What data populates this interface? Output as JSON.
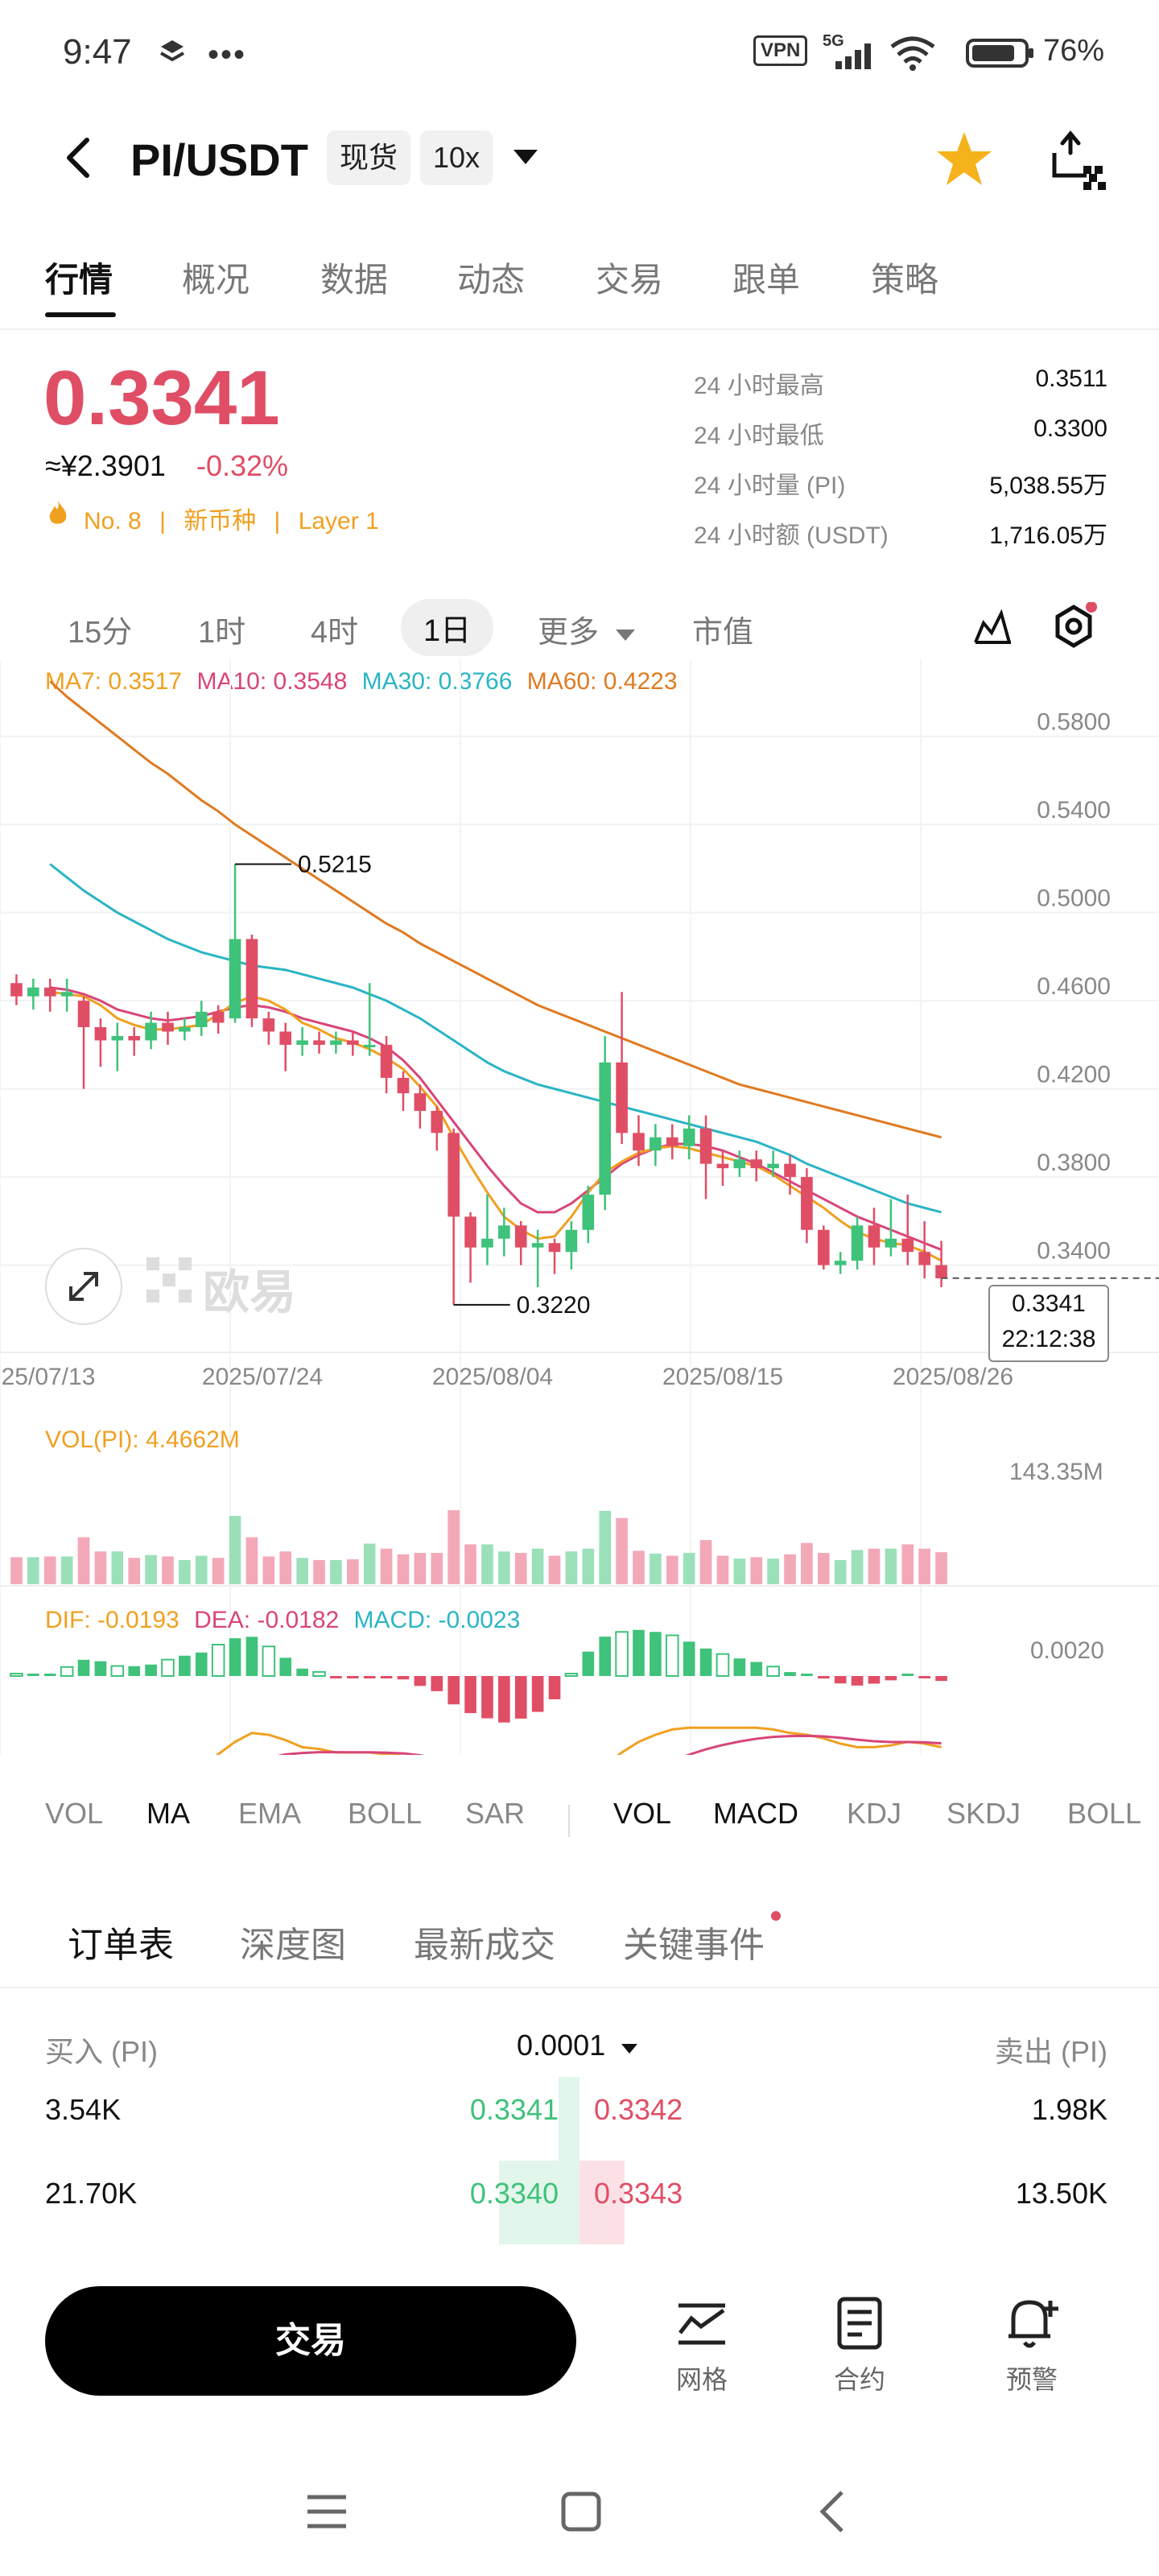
{
  "status_bar": {
    "time": "9:47",
    "vpn": "VPN",
    "network": "5G",
    "battery": "76%"
  },
  "header": {
    "pair": "PI/USDT",
    "market_type": "现货",
    "leverage": "10x"
  },
  "tabs": [
    "行情",
    "概况",
    "数据",
    "动态",
    "交易",
    "跟单",
    "策略"
  ],
  "ticker": {
    "price": "0.3341",
    "fiat": "≈¥2.3901",
    "change": "-0.32%",
    "rank": "No. 8",
    "tag1": "新币种",
    "tag2": "Layer 1",
    "stats": [
      {
        "label": "24 小时最高",
        "value": "0.3511"
      },
      {
        "label": "24 小时最低",
        "value": "0.3300"
      },
      {
        "label": "24 小时量 (PI)",
        "value": "5,038.55万"
      },
      {
        "label": "24 小时额 (USDT)",
        "value": "1,716.05万"
      }
    ]
  },
  "timeframes": [
    "15分",
    "1时",
    "4时",
    "1日",
    "更多",
    "市值"
  ],
  "ma_legend": [
    {
      "label": "MA7: 0.3517",
      "color": "#f0a020"
    },
    {
      "label": "MA10: 0.3548",
      "color": "#d8457a"
    },
    {
      "label": "MA30: 0.3766",
      "color": "#2bb5c4"
    },
    {
      "label": "MA60: 0.4223",
      "color": "#e07a20"
    }
  ],
  "chart_data": {
    "type": "candlestick",
    "y_ticks": [
      "0.5800",
      "0.5400",
      "0.5000",
      "0.4600",
      "0.4200",
      "0.3800",
      "0.3400"
    ],
    "ylim": [
      0.315,
      0.6
    ],
    "x_ticks": [
      "25/07/13",
      "2025/07/24",
      "2025/08/04",
      "2025/08/15",
      "2025/08/26"
    ],
    "high_marker": "0.5215",
    "low_marker": "0.3220",
    "current_price": "0.3341",
    "countdown": "22:12:38",
    "watermark": "欧易",
    "candles": [
      [
        0.468,
        0.462,
        0.472,
        0.458
      ],
      [
        0.462,
        0.466,
        0.47,
        0.456
      ],
      [
        0.466,
        0.462,
        0.47,
        0.455
      ],
      [
        0.462,
        0.464,
        0.47,
        0.455
      ],
      [
        0.46,
        0.448,
        0.462,
        0.42
      ],
      [
        0.448,
        0.442,
        0.452,
        0.43
      ],
      [
        0.442,
        0.444,
        0.45,
        0.428
      ],
      [
        0.444,
        0.442,
        0.448,
        0.435
      ],
      [
        0.442,
        0.45,
        0.455,
        0.438
      ],
      [
        0.45,
        0.446,
        0.455,
        0.44
      ],
      [
        0.446,
        0.448,
        0.452,
        0.442
      ],
      [
        0.448,
        0.455,
        0.46,
        0.444
      ],
      [
        0.455,
        0.45,
        0.458,
        0.445
      ],
      [
        0.452,
        0.488,
        0.522,
        0.45
      ],
      [
        0.488,
        0.452,
        0.49,
        0.448
      ],
      [
        0.452,
        0.446,
        0.455,
        0.44
      ],
      [
        0.446,
        0.44,
        0.45,
        0.428
      ],
      [
        0.44,
        0.442,
        0.448,
        0.435
      ],
      [
        0.442,
        0.44,
        0.446,
        0.436
      ],
      [
        0.44,
        0.442,
        0.446,
        0.436
      ],
      [
        0.442,
        0.44,
        0.446,
        0.435
      ],
      [
        0.44,
        0.44,
        0.468,
        0.435
      ],
      [
        0.44,
        0.425,
        0.444,
        0.418
      ],
      [
        0.425,
        0.418,
        0.428,
        0.41
      ],
      [
        0.418,
        0.41,
        0.422,
        0.402
      ],
      [
        0.41,
        0.4,
        0.412,
        0.392
      ],
      [
        0.4,
        0.362,
        0.402,
        0.322
      ],
      [
        0.362,
        0.348,
        0.364,
        0.332
      ],
      [
        0.348,
        0.352,
        0.372,
        0.34
      ],
      [
        0.352,
        0.358,
        0.366,
        0.344
      ],
      [
        0.358,
        0.348,
        0.36,
        0.34
      ],
      [
        0.348,
        0.35,
        0.356,
        0.33
      ],
      [
        0.35,
        0.346,
        0.352,
        0.336
      ],
      [
        0.346,
        0.356,
        0.36,
        0.338
      ],
      [
        0.356,
        0.372,
        0.376,
        0.35
      ],
      [
        0.372,
        0.432,
        0.444,
        0.365
      ],
      [
        0.432,
        0.4,
        0.464,
        0.395
      ],
      [
        0.4,
        0.392,
        0.408,
        0.385
      ],
      [
        0.392,
        0.398,
        0.404,
        0.385
      ],
      [
        0.398,
        0.394,
        0.404,
        0.388
      ],
      [
        0.394,
        0.402,
        0.408,
        0.388
      ],
      [
        0.402,
        0.386,
        0.408,
        0.37
      ],
      [
        0.386,
        0.384,
        0.392,
        0.376
      ],
      [
        0.384,
        0.388,
        0.392,
        0.38
      ],
      [
        0.388,
        0.384,
        0.392,
        0.378
      ],
      [
        0.384,
        0.386,
        0.392,
        0.38
      ],
      [
        0.386,
        0.38,
        0.39,
        0.372
      ],
      [
        0.38,
        0.356,
        0.384,
        0.35
      ],
      [
        0.356,
        0.34,
        0.358,
        0.338
      ],
      [
        0.34,
        0.342,
        0.346,
        0.336
      ],
      [
        0.342,
        0.358,
        0.362,
        0.338
      ],
      [
        0.358,
        0.348,
        0.366,
        0.34
      ],
      [
        0.348,
        0.352,
        0.37,
        0.344
      ],
      [
        0.352,
        0.346,
        0.372,
        0.34
      ],
      [
        0.346,
        0.34,
        0.36,
        0.334
      ],
      [
        0.34,
        0.334,
        0.351,
        0.33
      ]
    ],
    "ma7": [
      0.464,
      0.463,
      0.462,
      0.458,
      0.452,
      0.449,
      0.447,
      0.447,
      0.448,
      0.449,
      0.454,
      0.459,
      0.462,
      0.46,
      0.456,
      0.45,
      0.447,
      0.443,
      0.441,
      0.438,
      0.434,
      0.429,
      0.421,
      0.412,
      0.398,
      0.385,
      0.373,
      0.362,
      0.356,
      0.352,
      0.353,
      0.362,
      0.373,
      0.382,
      0.387,
      0.391,
      0.393,
      0.394,
      0.393,
      0.391,
      0.389,
      0.387,
      0.385,
      0.381,
      0.376,
      0.371,
      0.366,
      0.36,
      0.355,
      0.352,
      0.35,
      0.349,
      0.346,
      0.342
    ],
    "ma10": [
      0.466,
      0.465,
      0.463,
      0.46,
      0.456,
      0.454,
      0.452,
      0.451,
      0.452,
      0.453,
      0.455,
      0.457,
      0.458,
      0.457,
      0.455,
      0.452,
      0.45,
      0.448,
      0.446,
      0.443,
      0.439,
      0.433,
      0.425,
      0.415,
      0.405,
      0.395,
      0.385,
      0.376,
      0.368,
      0.364,
      0.364,
      0.368,
      0.374,
      0.38,
      0.386,
      0.39,
      0.393,
      0.395,
      0.395,
      0.394,
      0.392,
      0.389,
      0.386,
      0.382,
      0.378,
      0.374,
      0.37,
      0.366,
      0.362,
      0.359,
      0.356,
      0.353,
      0.35,
      0.347
    ],
    "ma30": [
      0.522,
      0.516,
      0.51,
      0.505,
      0.5,
      0.496,
      0.492,
      0.488,
      0.485,
      0.482,
      0.48,
      0.478,
      0.476,
      0.475,
      0.474,
      0.472,
      0.47,
      0.468,
      0.466,
      0.463,
      0.46,
      0.456,
      0.452,
      0.447,
      0.442,
      0.437,
      0.432,
      0.428,
      0.425,
      0.422,
      0.42,
      0.418,
      0.416,
      0.414,
      0.412,
      0.41,
      0.408,
      0.406,
      0.404,
      0.402,
      0.4,
      0.398,
      0.396,
      0.393,
      0.39,
      0.386,
      0.383,
      0.38,
      0.377,
      0.374,
      0.371,
      0.368,
      0.366,
      0.364
    ],
    "ma60": [
      0.605,
      0.598,
      0.592,
      0.586,
      0.58,
      0.574,
      0.568,
      0.563,
      0.557,
      0.551,
      0.546,
      0.54,
      0.535,
      0.53,
      0.525,
      0.52,
      0.515,
      0.51,
      0.505,
      0.5,
      0.495,
      0.491,
      0.486,
      0.482,
      0.478,
      0.474,
      0.47,
      0.466,
      0.462,
      0.458,
      0.455,
      0.452,
      0.449,
      0.446,
      0.443,
      0.44,
      0.437,
      0.434,
      0.431,
      0.428,
      0.425,
      0.422,
      0.42,
      0.418,
      0.416,
      0.414,
      0.412,
      0.41,
      0.408,
      0.406,
      0.404,
      0.402,
      0.4,
      0.398
    ]
  },
  "volume": {
    "label": "VOL(PI): 4.4662M",
    "max_label": "143.35M"
  },
  "macd": {
    "dif": "DIF: -0.0193",
    "dea": "DEA: -0.0182",
    "macd": "MACD: -0.0023",
    "axis": "0.0020"
  },
  "indicators_main": [
    "VOL",
    "MA",
    "EMA",
    "BOLL",
    "SAR"
  ],
  "indicators_sub": [
    "VOL",
    "MACD",
    "KDJ",
    "SKDJ",
    "BOLL"
  ],
  "orderbook_tabs": [
    "订单表",
    "深度图",
    "最新成交",
    "关键事件"
  ],
  "orderbook": {
    "buy_header": "买入 (PI)",
    "precision": "0.0001",
    "sell_header": "卖出 (PI)",
    "rows": [
      {
        "buy_qty": "3.54K",
        "bid": "0.3341",
        "ask": "0.3342",
        "sell_qty": "1.98K",
        "bid_depth": 0.08,
        "ask_depth": 0.03
      },
      {
        "buy_qty": "21.70K",
        "bid": "0.3340",
        "ask": "0.3343",
        "sell_qty": "13.50K",
        "bid_depth": 0.55,
        "ask_depth": 0.35
      }
    ]
  },
  "bottom": {
    "trade": "交易",
    "grid": "网格",
    "contract": "合约",
    "alert": "预警"
  },
  "colors": {
    "up": "#3fc27a",
    "down": "#e04e66",
    "accent": "#f0a020"
  }
}
